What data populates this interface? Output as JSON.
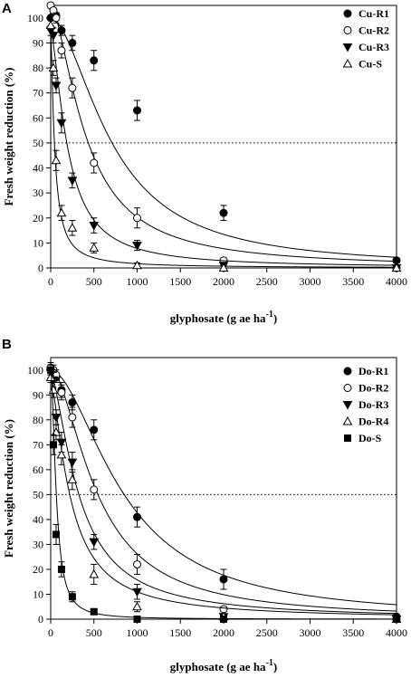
{
  "chart_data": [
    {
      "type": "scatter",
      "panel": "A",
      "xlabel": "glyphosate (g ae ha",
      "xlabel_sup": "-1",
      "xlabel_suffix": ")",
      "ylabel": "Fresh weight reduction (%)",
      "xlim": [
        0,
        4000
      ],
      "ylim": [
        0,
        105
      ],
      "xticks": [
        0,
        500,
        1000,
        1500,
        2000,
        2500,
        3000,
        3500,
        4000
      ],
      "yticks": [
        0,
        10,
        20,
        30,
        40,
        50,
        60,
        70,
        80,
        90,
        100
      ],
      "reference_line": 50,
      "grid": false,
      "legend": "top-right",
      "series": [
        {
          "name": "Cu-R1",
          "marker": "circle-filled",
          "ed50": 710,
          "b": 1.8,
          "x": [
            0,
            31.25,
            62.5,
            125,
            250,
            500,
            1000,
            2000,
            4000
          ],
          "y": [
            100,
            101,
            101,
            95,
            90,
            83,
            63,
            22,
            3
          ],
          "err": [
            1,
            1,
            1,
            2,
            3,
            4,
            4,
            3,
            1
          ]
        },
        {
          "name": "Cu-R2",
          "marker": "circle-open",
          "ed50": 410,
          "b": 1.6,
          "x": [
            0,
            31.25,
            62.5,
            125,
            250,
            500,
            1000,
            2000,
            4000
          ],
          "y": [
            105,
            103,
            100,
            87,
            72,
            42,
            20,
            3,
            0
          ],
          "err": [
            1,
            1,
            2,
            3,
            4,
            4,
            4,
            1,
            1
          ]
        },
        {
          "name": "Cu-R3",
          "marker": "triangle-down-filled",
          "ed50": 200,
          "b": 1.5,
          "x": [
            0,
            31.25,
            62.5,
            125,
            250,
            500,
            1000,
            2000,
            4000
          ],
          "y": [
            95,
            93,
            73,
            58,
            35,
            17,
            9,
            1,
            0
          ],
          "err": [
            2,
            3,
            3,
            4,
            3,
            3,
            2,
            1,
            1
          ]
        },
        {
          "name": "Cu-S",
          "marker": "triangle-up-open",
          "ed50": 45,
          "b": 1.3,
          "x": [
            0,
            31.25,
            62.5,
            125,
            250,
            500,
            1000,
            2000,
            4000
          ],
          "y": [
            97,
            80,
            43,
            22,
            16,
            8,
            1,
            0,
            0
          ],
          "err": [
            2,
            3,
            4,
            3,
            3,
            2,
            1,
            1,
            1
          ]
        }
      ]
    },
    {
      "type": "scatter",
      "panel": "B",
      "xlabel": "glyphosate (g ae ha",
      "xlabel_sup": "-1",
      "xlabel_suffix": ")",
      "ylabel": "Fresh weight reduction (%)",
      "xlim": [
        0,
        4000
      ],
      "ylim": [
        0,
        105
      ],
      "xticks": [
        0,
        500,
        1000,
        1500,
        2000,
        2500,
        3000,
        3500,
        4000
      ],
      "yticks": [
        0,
        10,
        20,
        30,
        40,
        50,
        60,
        70,
        80,
        90,
        100
      ],
      "reference_line": 50,
      "grid": false,
      "legend": "top-right",
      "series": [
        {
          "name": "Do-R1",
          "marker": "circle-filled",
          "ed50": 850,
          "b": 1.8,
          "x": [
            0,
            31.25,
            62.5,
            125,
            250,
            500,
            1000,
            2000,
            4000
          ],
          "y": [
            100,
            98,
            97,
            92,
            87,
            76,
            41,
            16,
            1
          ],
          "err": [
            2,
            2,
            2,
            3,
            3,
            4,
            4,
            4,
            1
          ]
        },
        {
          "name": "Do-R2",
          "marker": "circle-open",
          "ed50": 540,
          "b": 1.7,
          "x": [
            0,
            31.25,
            62.5,
            125,
            250,
            500,
            1000,
            2000,
            4000
          ],
          "y": [
            101,
            100,
            98,
            91,
            81,
            52,
            22,
            4,
            0
          ],
          "err": [
            2,
            2,
            2,
            3,
            4,
            4,
            4,
            1,
            1
          ]
        },
        {
          "name": "Do-R3",
          "marker": "triangle-down-filled",
          "ed50": 330,
          "b": 1.5,
          "x": [
            0,
            31.25,
            62.5,
            125,
            250,
            500,
            1000,
            2000,
            4000
          ],
          "y": [
            99,
            96,
            81,
            71,
            63,
            31,
            11,
            1,
            0
          ],
          "err": [
            2,
            3,
            3,
            4,
            4,
            3,
            3,
            1,
            1
          ]
        },
        {
          "name": "Do-R4",
          "marker": "triangle-up-open",
          "ed50": 230,
          "b": 1.4,
          "x": [
            0,
            31.25,
            62.5,
            125,
            250,
            500,
            1000,
            2000,
            4000
          ],
          "y": [
            97,
            92,
            75,
            66,
            56,
            18,
            5,
            1,
            0
          ],
          "err": [
            2,
            3,
            3,
            4,
            4,
            4,
            2,
            1,
            1
          ]
        },
        {
          "name": "Do-S",
          "marker": "square-filled",
          "ed50": 65,
          "b": 1.8,
          "x": [
            0,
            31.25,
            62.5,
            125,
            250,
            500,
            1000,
            2000,
            4000
          ],
          "y": [
            100,
            70,
            34,
            20,
            9,
            3,
            0,
            0,
            0
          ],
          "err": [
            2,
            4,
            4,
            3,
            2,
            1,
            1,
            1,
            1
          ]
        }
      ]
    }
  ]
}
